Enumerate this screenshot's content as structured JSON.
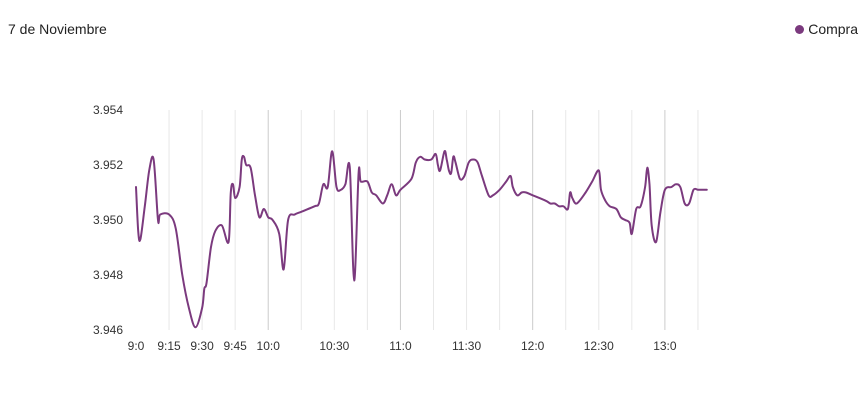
{
  "header": {
    "date_label": "7 de Noviembre"
  },
  "chart_data": {
    "type": "line",
    "title": "",
    "xlabel": "",
    "ylabel": "",
    "x_tick_labels": [
      "9:0",
      "9:15",
      "9:30",
      "9:45",
      "10:0",
      "10:30",
      "11:0",
      "11:30",
      "12:0",
      "12:30",
      "13:0"
    ],
    "y_tick_labels": [
      "3.954",
      "3.952",
      "3.950",
      "3.948",
      "3.946"
    ],
    "ylim": [
      3.946,
      3.954
    ],
    "xlim_minutes": [
      540,
      810
    ],
    "grid": true,
    "legend_position": "top-right",
    "colors": {
      "series": "#7b3a7e",
      "grid": "#e8e8e8",
      "major_grid": "#cccccc"
    },
    "series": [
      {
        "name": "Compra",
        "points": [
          [
            "9:00",
            3.9512
          ],
          [
            "9:01",
            3.9496
          ],
          [
            "9:02",
            3.9493
          ],
          [
            "9:04",
            3.9505
          ],
          [
            "9:06",
            3.9518
          ],
          [
            "9:08",
            3.9522
          ],
          [
            "9:10",
            3.95
          ],
          [
            "9:11",
            3.9502
          ],
          [
            "9:15",
            3.9502
          ],
          [
            "9:18",
            3.9497
          ],
          [
            "9:21",
            3.948
          ],
          [
            "9:24",
            3.9468
          ],
          [
            "9:27",
            3.9461
          ],
          [
            "9:30",
            3.9468
          ],
          [
            "9:31",
            3.9475
          ],
          [
            "9:32",
            3.9477
          ],
          [
            "9:34",
            3.949
          ],
          [
            "9:36",
            3.9496
          ],
          [
            "9:39",
            3.9498
          ],
          [
            "9:42",
            3.9492
          ],
          [
            "9:43",
            3.951
          ],
          [
            "9:44",
            3.9513
          ],
          [
            "9:45",
            3.9508
          ],
          [
            "9:47",
            3.9512
          ],
          [
            "9:48",
            3.9522
          ],
          [
            "9:49",
            3.9523
          ],
          [
            "9:50",
            3.952
          ],
          [
            "9:52",
            3.9519
          ],
          [
            "9:54",
            3.9509
          ],
          [
            "9:56",
            3.9501
          ],
          [
            "9:58",
            3.9504
          ],
          [
            "10:00",
            3.9501
          ],
          [
            "10:02",
            3.95
          ],
          [
            "10:05",
            3.9495
          ],
          [
            "10:07",
            3.9482
          ],
          [
            "10:09",
            3.95
          ],
          [
            "10:12",
            3.9502
          ],
          [
            "10:15",
            3.9503
          ],
          [
            "10:21",
            3.9505
          ],
          [
            "10:23",
            3.9506
          ],
          [
            "10:25",
            3.9513
          ],
          [
            "10:27",
            3.9512
          ],
          [
            "10:29",
            3.9525
          ],
          [
            "10:31",
            3.9512
          ],
          [
            "10:33",
            3.9511
          ],
          [
            "10:35",
            3.9513
          ],
          [
            "10:37",
            3.9519
          ],
          [
            "10:39",
            3.9478
          ],
          [
            "10:41",
            3.9517
          ],
          [
            "10:42",
            3.9514
          ],
          [
            "10:45",
            3.9514
          ],
          [
            "10:47",
            3.951
          ],
          [
            "10:49",
            3.9509
          ],
          [
            "10:52",
            3.9506
          ],
          [
            "10:54",
            3.9509
          ],
          [
            "10:56",
            3.9513
          ],
          [
            "10:58",
            3.9509
          ],
          [
            "11:00",
            3.9511
          ],
          [
            "11:05",
            3.9515
          ],
          [
            "11:07",
            3.9521
          ],
          [
            "11:09",
            3.9523
          ],
          [
            "11:11",
            3.9522
          ],
          [
            "11:14",
            3.9522
          ],
          [
            "11:16",
            3.9524
          ],
          [
            "11:17",
            3.952
          ],
          [
            "11:18",
            3.9518
          ],
          [
            "11:20",
            3.9525
          ],
          [
            "11:21",
            3.9522
          ],
          [
            "11:22",
            3.9518
          ],
          [
            "11:23",
            3.9517
          ],
          [
            "11:24",
            3.9523
          ],
          [
            "11:25",
            3.9521
          ],
          [
            "11:27",
            3.9515
          ],
          [
            "11:29",
            3.9516
          ],
          [
            "11:31",
            3.9521
          ],
          [
            "11:33",
            3.9522
          ],
          [
            "11:35",
            3.9521
          ],
          [
            "11:37",
            3.9516
          ],
          [
            "11:40",
            3.9509
          ],
          [
            "11:42",
            3.9509
          ],
          [
            "11:45",
            3.9511
          ],
          [
            "11:48",
            3.9514
          ],
          [
            "11:50",
            3.9516
          ],
          [
            "11:51",
            3.9512
          ],
          [
            "11:53",
            3.9509
          ],
          [
            "11:55",
            3.951
          ],
          [
            "11:57",
            3.951
          ],
          [
            "12:00",
            3.9509
          ],
          [
            "12:06",
            3.9507
          ],
          [
            "12:08",
            3.9506
          ],
          [
            "12:10",
            3.9506
          ],
          [
            "12:12",
            3.9505
          ],
          [
            "12:14",
            3.9505
          ],
          [
            "12:16",
            3.9504
          ],
          [
            "12:17",
            3.951
          ],
          [
            "12:18",
            3.9508
          ],
          [
            "12:20",
            3.9506
          ],
          [
            "12:24",
            3.951
          ],
          [
            "12:27",
            3.9514
          ],
          [
            "12:30",
            3.9518
          ],
          [
            "12:31",
            3.9511
          ],
          [
            "12:33",
            3.9507
          ],
          [
            "12:35",
            3.9505
          ],
          [
            "12:38",
            3.9504
          ],
          [
            "12:40",
            3.9501
          ],
          [
            "12:42",
            3.95
          ],
          [
            "12:44",
            3.9499
          ],
          [
            "12:45",
            3.9495
          ],
          [
            "12:47",
            3.9504
          ],
          [
            "12:49",
            3.9505
          ],
          [
            "12:51",
            3.9512
          ],
          [
            "12:52",
            3.9519
          ],
          [
            "12:53",
            3.9513
          ],
          [
            "12:54",
            3.9498
          ],
          [
            "12:56",
            3.9492
          ],
          [
            "12:58",
            3.9503
          ],
          [
            "13:00",
            3.9511
          ],
          [
            "13:03",
            3.9512
          ],
          [
            "13:05",
            3.9513
          ],
          [
            "13:07",
            3.9512
          ],
          [
            "13:09",
            3.9506
          ],
          [
            "13:11",
            3.9506
          ],
          [
            "13:13",
            3.9511
          ],
          [
            "13:15",
            3.9511
          ],
          [
            "13:17",
            3.9511
          ],
          [
            "13:19",
            3.9511
          ]
        ]
      }
    ]
  }
}
